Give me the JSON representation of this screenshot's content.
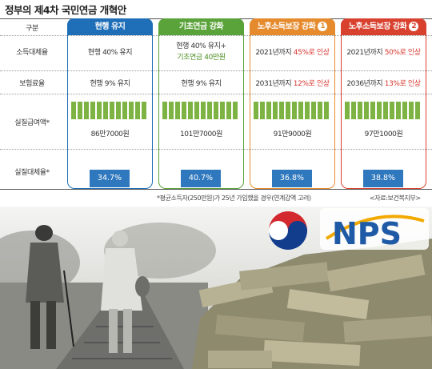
{
  "title": "정부의 제4차 국민연금 개혁안",
  "header": {
    "row_label": "구분",
    "columns": [
      {
        "label": "현행 유지",
        "color": "#1f6fb8"
      },
      {
        "label": "기초연금 강화",
        "color": "#5aa33a"
      },
      {
        "label": "노후소득보장 강화",
        "badge": "1",
        "color": "#e58b2e"
      },
      {
        "label": "노후소득보장 강화",
        "badge": "2",
        "color": "#d9412f"
      }
    ]
  },
  "rows": {
    "replacement": {
      "label": "소득대체율",
      "c1": "현행 40% 유지",
      "c2_line1": "현행 40% 유지+",
      "c2_line2": "기초연금 40만원",
      "c3_pre": "2021년까지 ",
      "c3_hl": "45%로 인상",
      "c4_pre": "2021년까지 ",
      "c4_hl": "50%로 인상"
    },
    "premium": {
      "label": "보험료율",
      "c1": "현행 9% 유지",
      "c2": "현행 9% 유지",
      "c3_pre": "2031년까지 ",
      "c3_hl": "12%로 인상",
      "c4_pre": "2036년까지 ",
      "c4_hl": "13%로 인상"
    },
    "benefit": {
      "label": "실질급여액*",
      "c1": "86만7000원",
      "c2": "101만7000원",
      "c3": "91만9000원",
      "c4": "97만1000원"
    },
    "real_rate": {
      "label": "실질대체율*",
      "c1": "34.7%",
      "c2": "40.7%",
      "c3": "36.8%",
      "c4": "38.8%"
    }
  },
  "chart_data": {
    "type": "bar",
    "categories": [
      "현행 유지",
      "기초연금 강화",
      "노후소득보장 강화 1",
      "노후소득보장 강화 2"
    ],
    "series": [
      {
        "values": [
          34.7,
          40.7,
          36.8,
          38.8
        ]
      }
    ],
    "benefit_values": [
      "86만7000원",
      "101만7000원",
      "91만9000원",
      "97만1000원"
    ]
  },
  "footnote": "*평균소득자(250만원)가 25년 가입했을 경우(연계감액 고려)",
  "source": "<자료:보건복지부>",
  "logo": {
    "text": "NPS"
  }
}
